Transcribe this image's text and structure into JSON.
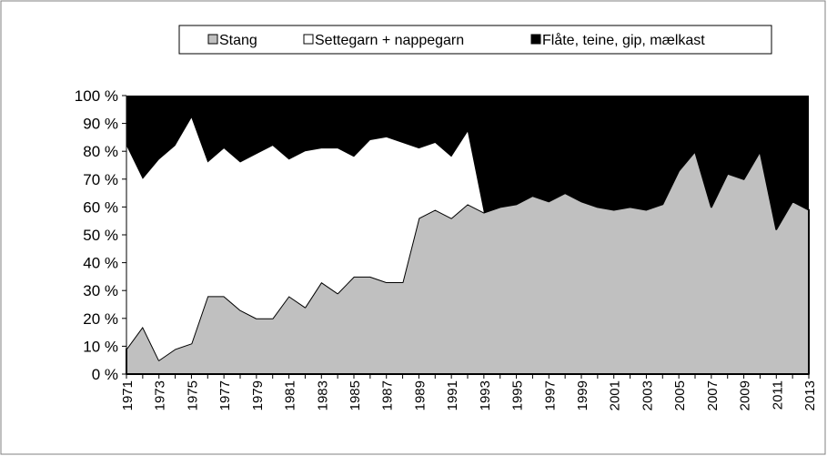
{
  "chart_data": {
    "type": "area",
    "stacked_percent": true,
    "categories": [
      "1971",
      null,
      "1973",
      null,
      "1975",
      null,
      "1977",
      null,
      "1979",
      null,
      "1981",
      null,
      "1983",
      null,
      "1985",
      null,
      "1987",
      null,
      "1989",
      null,
      "1991",
      null,
      "1993",
      null,
      "1995",
      null,
      "1997",
      null,
      "1999",
      null,
      "2001",
      null,
      "2003",
      null,
      "2005",
      null,
      "2007",
      null,
      "2009",
      null,
      "2011",
      null,
      "2013"
    ],
    "series": [
      {
        "name": "Stang",
        "color": "#c0c0c0",
        "values": [
          9,
          17,
          5,
          9,
          11,
          28,
          28,
          23,
          20,
          20,
          28,
          24,
          33,
          29,
          35,
          35,
          33,
          33,
          56,
          59,
          56,
          61,
          58,
          60,
          61,
          64,
          62,
          65,
          62,
          60,
          59,
          60,
          59,
          61,
          73,
          80,
          60,
          72,
          70,
          80,
          52,
          62,
          59
        ]
      },
      {
        "name": "Settegarn + nappegarn",
        "color": "#ffffff",
        "values": [
          73,
          53,
          72,
          73,
          81,
          48,
          53,
          53,
          59,
          62,
          49,
          56,
          48,
          52,
          43,
          49,
          52,
          50,
          25,
          24,
          22,
          26,
          0,
          0,
          0,
          0,
          0,
          0,
          0,
          0,
          0,
          0,
          0,
          0,
          0,
          0,
          0,
          0,
          0,
          0,
          0,
          0,
          0
        ]
      },
      {
        "name": "Flåte, teine, gip, mælkast",
        "color": "#000000",
        "values": [
          18,
          30,
          23,
          18,
          8,
          24,
          19,
          24,
          21,
          18,
          23,
          20,
          19,
          19,
          22,
          16,
          15,
          17,
          19,
          17,
          22,
          13,
          42,
          40,
          39,
          36,
          38,
          35,
          38,
          40,
          41,
          40,
          41,
          39,
          27,
          20,
          40,
          28,
          30,
          20,
          48,
          38,
          41
        ]
      }
    ],
    "ylim": [
      0,
      100
    ],
    "yticks": [
      {
        "value": 0,
        "label": "0 %"
      },
      {
        "value": 10,
        "label": "10 %"
      },
      {
        "value": 20,
        "label": "20 %"
      },
      {
        "value": 30,
        "label": "30 %"
      },
      {
        "value": 40,
        "label": "40 %"
      },
      {
        "value": 50,
        "label": "50 %"
      },
      {
        "value": 60,
        "label": "60 %"
      },
      {
        "value": 70,
        "label": "70 %"
      },
      {
        "value": 80,
        "label": "80 %"
      },
      {
        "value": 90,
        "label": "90 %"
      },
      {
        "value": 100,
        "label": "100 %"
      }
    ],
    "legend": "top"
  }
}
